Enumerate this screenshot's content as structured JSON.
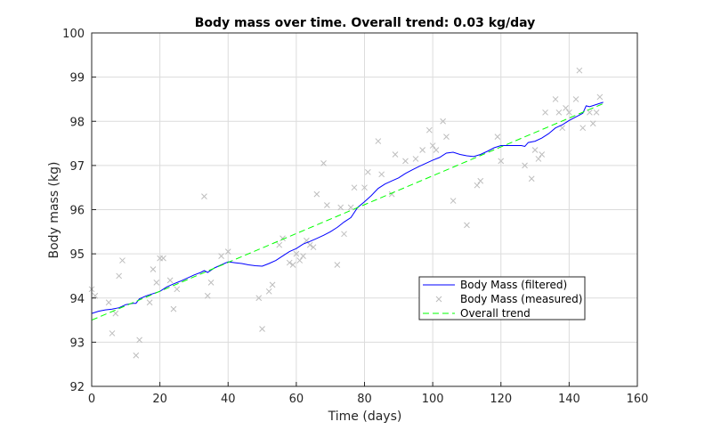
{
  "chart_data": {
    "type": "line",
    "title": "Body mass over time. Overall trend: 0.03 kg/day",
    "xlabel": "Time (days)",
    "ylabel": "Body mass (kg)",
    "xlim": [
      0,
      160
    ],
    "ylim": [
      92,
      100
    ],
    "xticks": [
      "0",
      "20",
      "40",
      "60",
      "80",
      "100",
      "120",
      "140",
      "160"
    ],
    "yticks": [
      "92",
      "93",
      "94",
      "95",
      "96",
      "97",
      "98",
      "99",
      "100"
    ],
    "grid": true,
    "legend_position": "lower-right",
    "colors": {
      "filtered": "#0000ff",
      "measured": "#bdbdbd",
      "trend": "#00ff00"
    },
    "series": [
      {
        "name": "Body Mass (filtered)",
        "style": "line",
        "x": [
          0,
          2,
          4,
          6,
          8,
          10,
          12,
          13,
          14,
          16,
          18,
          20,
          22,
          24,
          26,
          28,
          30,
          32,
          33,
          34,
          36,
          38,
          40,
          42,
          44,
          46,
          48,
          50,
          52,
          54,
          56,
          58,
          60,
          62,
          64,
          66,
          68,
          70,
          72,
          74,
          76,
          78,
          80,
          82,
          84,
          86,
          88,
          90,
          92,
          94,
          96,
          98,
          100,
          102,
          104,
          106,
          108,
          110,
          112,
          114,
          116,
          118,
          120,
          122,
          124,
          126,
          127,
          128,
          130,
          132,
          134,
          136,
          138,
          140,
          142,
          144,
          145,
          146,
          148,
          150
        ],
        "y": [
          93.65,
          93.7,
          93.73,
          93.75,
          93.78,
          93.85,
          93.88,
          93.88,
          93.98,
          94.05,
          94.1,
          94.15,
          94.25,
          94.32,
          94.38,
          94.45,
          94.52,
          94.58,
          94.62,
          94.58,
          94.68,
          94.75,
          94.82,
          94.8,
          94.78,
          94.75,
          94.73,
          94.72,
          94.78,
          94.85,
          94.95,
          95.05,
          95.12,
          95.22,
          95.28,
          95.35,
          95.42,
          95.5,
          95.6,
          95.72,
          95.82,
          96.05,
          96.18,
          96.32,
          96.48,
          96.58,
          96.65,
          96.72,
          96.82,
          96.9,
          96.98,
          97.05,
          97.12,
          97.18,
          97.28,
          97.3,
          97.25,
          97.22,
          97.2,
          97.25,
          97.32,
          97.4,
          97.45,
          97.45,
          97.45,
          97.45,
          97.43,
          97.52,
          97.55,
          97.62,
          97.72,
          97.85,
          97.92,
          98.02,
          98.1,
          98.18,
          98.35,
          98.33,
          98.38,
          98.43
        ]
      },
      {
        "name": "Body Mass (measured)",
        "style": "x-marker",
        "x": [
          0,
          1,
          5,
          6,
          7,
          8,
          9,
          13,
          14,
          17,
          18,
          19,
          20,
          21,
          23,
          24,
          25,
          33,
          34,
          35,
          38,
          40,
          49,
          50,
          52,
          53,
          55,
          56,
          58,
          59,
          60,
          61,
          62,
          63,
          64,
          65,
          66,
          68,
          69,
          72,
          73,
          74,
          76,
          77,
          80,
          81,
          84,
          85,
          88,
          89,
          92,
          95,
          97,
          99,
          100,
          101,
          103,
          104,
          106,
          110,
          113,
          114,
          119,
          120,
          127,
          129,
          130,
          131,
          132,
          133,
          136,
          137,
          138,
          139,
          140,
          142,
          143,
          144,
          146,
          147,
          148,
          149
        ],
        "y": [
          94.2,
          94.05,
          93.9,
          93.2,
          93.65,
          94.5,
          94.85,
          92.7,
          93.05,
          93.9,
          94.65,
          94.35,
          94.9,
          94.9,
          94.4,
          93.75,
          94.2,
          96.3,
          94.05,
          94.35,
          94.95,
          95.05,
          94.0,
          93.3,
          94.15,
          94.3,
          95.2,
          95.35,
          94.8,
          94.75,
          95.0,
          94.85,
          94.95,
          95.3,
          95.2,
          95.15,
          96.35,
          97.05,
          96.1,
          94.75,
          96.05,
          95.45,
          96.05,
          96.5,
          96.5,
          96.85,
          97.55,
          96.8,
          96.35,
          97.25,
          97.1,
          97.15,
          97.35,
          97.8,
          97.45,
          97.35,
          98.0,
          97.65,
          96.2,
          95.65,
          96.55,
          96.65,
          97.65,
          97.1,
          97.0,
          96.7,
          97.35,
          97.15,
          97.25,
          98.2,
          98.5,
          98.2,
          97.85,
          98.3,
          98.2,
          98.5,
          99.15,
          97.85,
          98.2,
          97.95,
          98.2,
          98.55
        ]
      },
      {
        "name": "Overall trend",
        "style": "dashed-line",
        "x": [
          0,
          150
        ],
        "y": [
          93.5,
          98.4
        ]
      }
    ]
  }
}
